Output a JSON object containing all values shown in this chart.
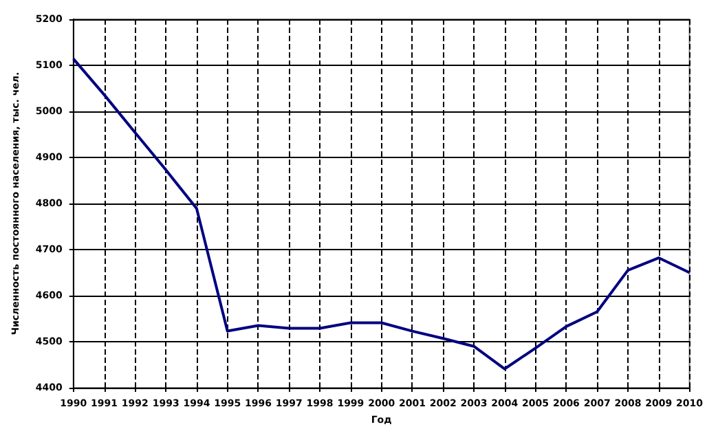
{
  "chart_data": {
    "type": "line",
    "xlabel": "Год",
    "ylabel": "Численность постоянного населения, тыс. чел.",
    "categories": [
      "1990",
      "1991",
      "1992",
      "1993",
      "1994",
      "1995",
      "1996",
      "1997",
      "1998",
      "1999",
      "2000",
      "2001",
      "2002",
      "2003",
      "2004",
      "2005",
      "2006",
      "2007",
      "2008",
      "2009",
      "2010"
    ],
    "series": [
      {
        "color": "#000080",
        "values": [
          5114,
          5036,
          4954,
          4873,
          4789,
          4523,
          4535,
          4529,
          4529,
          4541,
          4541,
          4523,
          4507,
          4490,
          4441,
          4486,
          4533,
          4565,
          4655,
          4682,
          4650
        ]
      }
    ],
    "ylim": [
      4400,
      5200
    ],
    "yticks": [
      4400,
      4500,
      4600,
      4700,
      4800,
      4900,
      5000,
      5100,
      5200
    ],
    "grid": true,
    "marker": "none",
    "line_style": "solid"
  }
}
